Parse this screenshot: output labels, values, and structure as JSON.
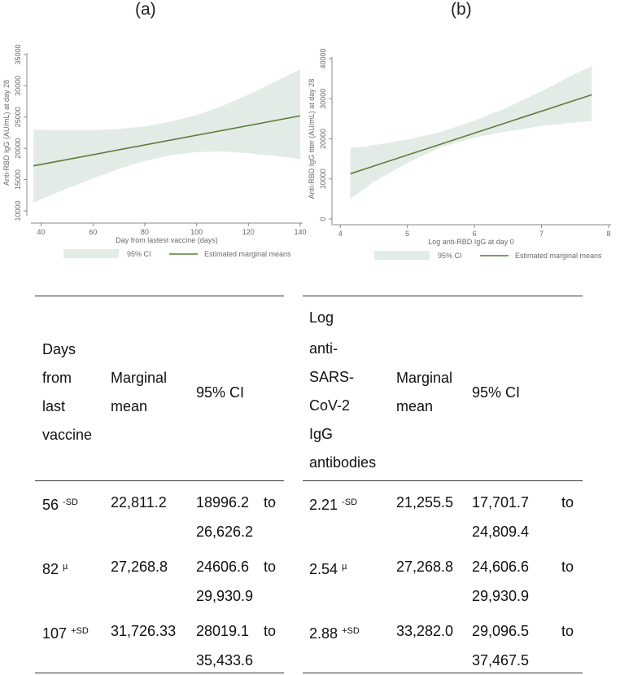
{
  "panels": {
    "a_label": "(a)",
    "b_label": "(b)"
  },
  "chart_data": [
    {
      "type": "line",
      "ylabel": "Anti-RBD IgG (AU/mL) at day 28",
      "xlabel": "Day from lastest vaccine (days)",
      "xlim": [
        37,
        140
      ],
      "ylim": [
        10000,
        35000
      ],
      "xticks": [
        "40",
        "60",
        "80",
        "100",
        "120",
        "140"
      ],
      "yticks": [
        "10000",
        "15000",
        "20000",
        "25000",
        "30000",
        "35000"
      ],
      "x": [
        37,
        140
      ],
      "series": [
        {
          "name": "Estimated marginal means",
          "values": [
            17200,
            25200
          ],
          "color": "#5a7d35"
        }
      ],
      "ci": {
        "x": [
          37,
          50,
          60,
          70,
          80,
          90,
          100,
          110,
          120,
          130,
          140
        ],
        "lower": [
          11300,
          13600,
          15200,
          16700,
          18000,
          18900,
          19400,
          19500,
          19200,
          18800,
          18300
        ],
        "upper": [
          23000,
          22900,
          22900,
          23100,
          23500,
          24300,
          25300,
          26800,
          28600,
          30600,
          32600
        ],
        "color": "#e3ebe6"
      },
      "legend": [
        "95% CI",
        "Estimated marginal means"
      ],
      "legend_position": "bottom"
    },
    {
      "type": "line",
      "ylabel": "Anti-RBD IgG titer (AU/mL) at day 28",
      "xlabel": "Log anti-RBD IgG at day 0",
      "xlim": [
        3.9,
        8
      ],
      "ylim": [
        0,
        40000
      ],
      "xticks": [
        "4",
        "5",
        "6",
        "7",
        "8"
      ],
      "yticks": [
        "0",
        "10000",
        "20000",
        "30000",
        "40000"
      ],
      "x": [
        4.15,
        7.75
      ],
      "series": [
        {
          "name": "Estimated marginal means",
          "values": [
            11300,
            31000
          ],
          "color": "#5a7d35"
        }
      ],
      "ci": {
        "x": [
          4.15,
          4.5,
          5.0,
          5.5,
          6.0,
          6.5,
          7.0,
          7.5,
          7.75
        ],
        "lower": [
          5000,
          9300,
          14000,
          17900,
          20300,
          21900,
          23200,
          24100,
          24400
        ],
        "upper": [
          17700,
          18400,
          19800,
          21700,
          24500,
          27900,
          31900,
          36200,
          38200
        ],
        "color": "#e3ebe6"
      },
      "legend": [
        "95% CI",
        "Estimated marginal means"
      ],
      "legend_position": "bottom"
    }
  ],
  "table_left": {
    "headers": {
      "col1": [
        "Days",
        "from",
        "last",
        "vaccine"
      ],
      "col2": [
        "Marginal",
        "mean"
      ],
      "col3": [
        "95% CI"
      ]
    },
    "rows": [
      {
        "x": "56",
        "sup": "-SD",
        "mean": "22,811.2",
        "ci_lo": "18996.2",
        "to": "to",
        "ci_hi": "26,626.2"
      },
      {
        "x": "82",
        "sup": "µ",
        "mean": "27,268.8",
        "ci_lo": "24606.6",
        "to": "to",
        "ci_hi": "29,930.9"
      },
      {
        "x": "107",
        "sup": "+SD",
        "mean": "31,726.33",
        "ci_lo": "28019.1",
        "to": "to",
        "ci_hi": "35,433.6"
      }
    ]
  },
  "table_right": {
    "headers": {
      "col1": [
        "Log",
        "anti-",
        "SARS-",
        "CoV-2",
        "IgG",
        "antibodies"
      ],
      "col2": [
        "Marginal",
        "mean"
      ],
      "col3": [
        "95% CI"
      ]
    },
    "rows": [
      {
        "x": "2.21",
        "sup": "-SD",
        "mean": "21,255.5",
        "ci_lo": "17,701.7",
        "to": "to",
        "ci_hi": "24,809.4"
      },
      {
        "x": "2.54",
        "sup": "µ",
        "mean": "27,268.8",
        "ci_lo": "24,606.6",
        "to": "to",
        "ci_hi": "29,930.9"
      },
      {
        "x": "2.88",
        "sup": "+SD",
        "mean": "33,282.0",
        "ci_lo": "29,096.5",
        "to": "to",
        "ci_hi": "37,467.5"
      }
    ]
  }
}
